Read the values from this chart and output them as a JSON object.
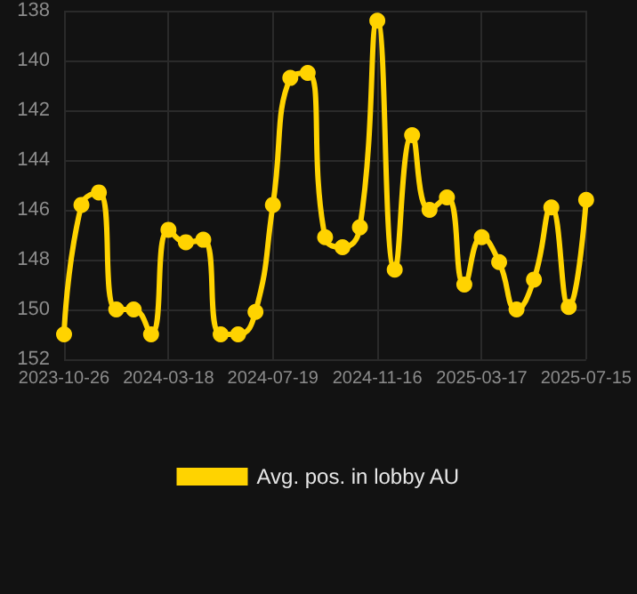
{
  "chart_data": {
    "type": "line",
    "categories": [
      "2023-10-26",
      null,
      null,
      null,
      null,
      null,
      "2024-03-18",
      null,
      null,
      null,
      null,
      null,
      "2024-07-19",
      null,
      null,
      null,
      null,
      null,
      "2024-11-16",
      null,
      null,
      null,
      null,
      null,
      "2025-03-17",
      null,
      null,
      null,
      null,
      null,
      "2025-07-15"
    ],
    "series": [
      {
        "name": "Avg. pos. in lobby AU",
        "color": "#ffd300",
        "values": [
          151,
          145.8,
          145.3,
          150,
          150,
          151,
          146.8,
          147.3,
          147.2,
          151,
          151,
          150.1,
          145.8,
          140.7,
          140.5,
          147.1,
          147.5,
          146.7,
          138.4,
          148.4,
          143,
          146,
          145.5,
          149,
          147.1,
          148.1,
          150,
          148.8,
          145.9,
          149.9,
          145.6
        ]
      }
    ],
    "ylim": [
      152,
      138
    ],
    "yticks": [
      138,
      140,
      142,
      144,
      146,
      148,
      150,
      152
    ],
    "grid": true,
    "legend": "bottom",
    "marker": "circle",
    "line_style": "solid"
  }
}
